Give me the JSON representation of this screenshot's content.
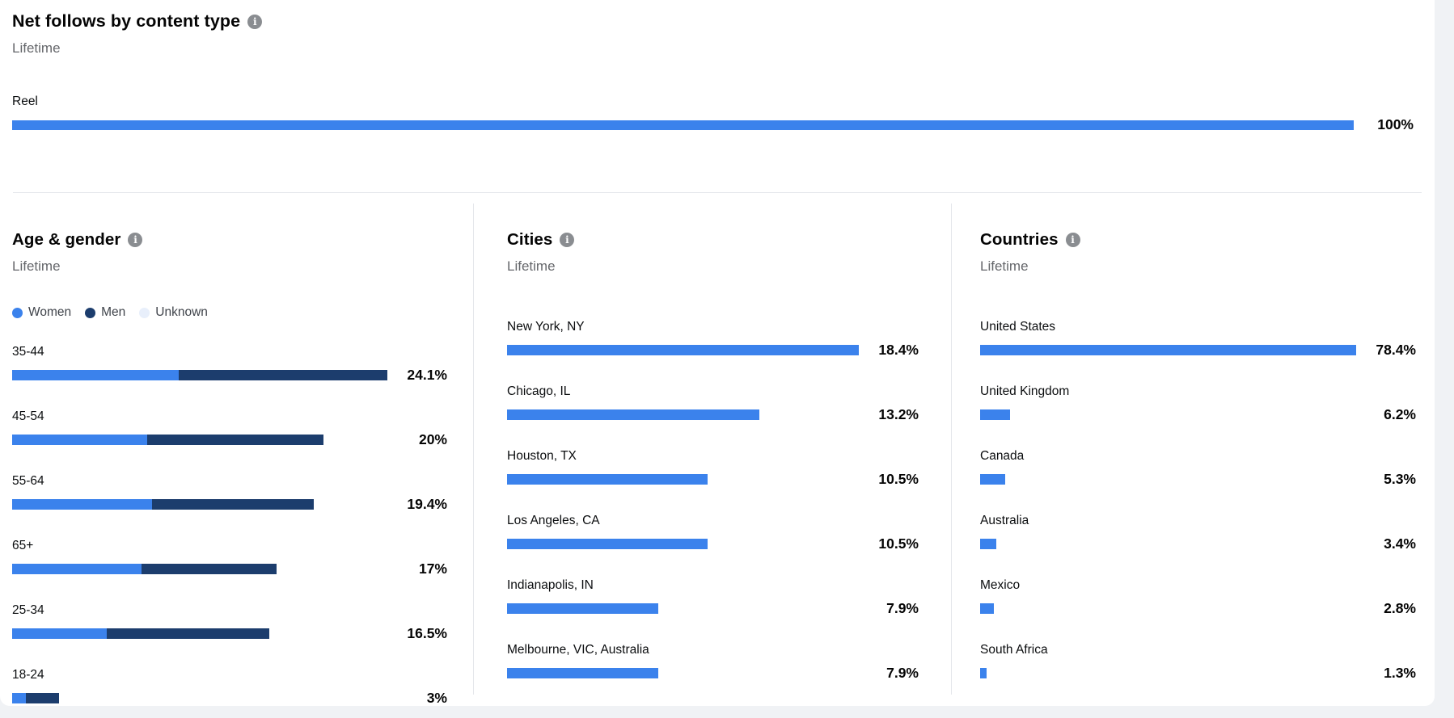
{
  "colors": {
    "bar_blue": "#3b82ec",
    "men_navy": "#1c3d6d",
    "unknown_light": "#e8effb",
    "info_gray": "#8a8d91",
    "divider": "#e4e6eb",
    "page_bg": "#f0f2f5",
    "card_bg": "#ffffff"
  },
  "net_follows": {
    "title": "Net follows by content type",
    "subtitle": "Lifetime",
    "info_icon": "i",
    "axis_max": 100,
    "rows": [
      {
        "label": "Reel",
        "display": "100%",
        "value": 100
      }
    ]
  },
  "age_gender": {
    "title": "Age & gender",
    "subtitle": "Lifetime",
    "info_icon": "i",
    "axis_max": 24.1,
    "legend": [
      {
        "label": "Women",
        "color": "#3b82ec"
      },
      {
        "label": "Men",
        "color": "#1c3d6d"
      },
      {
        "label": "Unknown",
        "color": "#e8effb"
      }
    ],
    "rows": [
      {
        "label": "35-44",
        "display": "24.1%",
        "value": 24.1,
        "women": 10.7,
        "men": 13.4
      },
      {
        "label": "45-54",
        "display": "20%",
        "value": 20,
        "women": 8.7,
        "men": 11.3
      },
      {
        "label": "55-64",
        "display": "19.4%",
        "value": 19.4,
        "women": 9.0,
        "men": 10.4
      },
      {
        "label": "65+",
        "display": "17%",
        "value": 17,
        "women": 8.3,
        "men": 8.7
      },
      {
        "label": "25-34",
        "display": "16.5%",
        "value": 16.5,
        "women": 6.1,
        "men": 10.4
      },
      {
        "label": "18-24",
        "display": "3%",
        "value": 3,
        "women": 0.9,
        "men": 2.1
      }
    ]
  },
  "cities": {
    "title": "Cities",
    "subtitle": "Lifetime",
    "info_icon": "i",
    "axis_max": 18.4,
    "rows": [
      {
        "label": "New York, NY",
        "display": "18.4%",
        "value": 18.4
      },
      {
        "label": "Chicago, IL",
        "display": "13.2%",
        "value": 13.2
      },
      {
        "label": "Houston, TX",
        "display": "10.5%",
        "value": 10.5
      },
      {
        "label": "Los Angeles, CA",
        "display": "10.5%",
        "value": 10.5
      },
      {
        "label": "Indianapolis, IN",
        "display": "7.9%",
        "value": 7.9
      },
      {
        "label": "Melbourne, VIC, Australia",
        "display": "7.9%",
        "value": 7.9
      }
    ]
  },
  "countries": {
    "title": "Countries",
    "subtitle": "Lifetime",
    "info_icon": "i",
    "axis_max": 78.4,
    "rows": [
      {
        "label": "United States",
        "display": "78.4%",
        "value": 78.4
      },
      {
        "label": "United Kingdom",
        "display": "6.2%",
        "value": 6.2
      },
      {
        "label": "Canada",
        "display": "5.3%",
        "value": 5.3
      },
      {
        "label": "Australia",
        "display": "3.4%",
        "value": 3.4
      },
      {
        "label": "Mexico",
        "display": "2.8%",
        "value": 2.8
      },
      {
        "label": "South Africa",
        "display": "1.3%",
        "value": 1.3
      }
    ]
  },
  "chart_data": [
    {
      "type": "bar",
      "orientation": "horizontal",
      "title": "Net follows by content type",
      "subtitle": "Lifetime",
      "categories": [
        "Reel"
      ],
      "values": [
        100
      ],
      "data_labels": [
        "100%"
      ],
      "unit": "%",
      "xlim": [
        0,
        100
      ],
      "grid": false,
      "legend_position": "none"
    },
    {
      "type": "bar",
      "orientation": "horizontal",
      "stacked": true,
      "title": "Age & gender",
      "subtitle": "Lifetime",
      "categories": [
        "35-44",
        "45-54",
        "55-64",
        "65+",
        "25-34",
        "18-24"
      ],
      "series": [
        {
          "name": "Women",
          "values": [
            10.7,
            8.7,
            9.0,
            8.3,
            6.1,
            0.9
          ]
        },
        {
          "name": "Men",
          "values": [
            13.4,
            11.3,
            10.4,
            8.7,
            10.4,
            2.1
          ]
        },
        {
          "name": "Unknown",
          "values": [
            0,
            0,
            0,
            0,
            0,
            0
          ]
        }
      ],
      "totals": [
        24.1,
        20,
        19.4,
        17,
        16.5,
        3
      ],
      "data_labels": [
        "24.1%",
        "20%",
        "19.4%",
        "17%",
        "16.5%",
        "3%"
      ],
      "unit": "%",
      "xlim": [
        0,
        24.1
      ],
      "grid": false,
      "legend_position": "top-left"
    },
    {
      "type": "bar",
      "orientation": "horizontal",
      "title": "Cities",
      "subtitle": "Lifetime",
      "categories": [
        "New York, NY",
        "Chicago, IL",
        "Houston, TX",
        "Los Angeles, CA",
        "Indianapolis, IN",
        "Melbourne, VIC, Australia"
      ],
      "values": [
        18.4,
        13.2,
        10.5,
        10.5,
        7.9,
        7.9
      ],
      "data_labels": [
        "18.4%",
        "13.2%",
        "10.5%",
        "10.5%",
        "7.9%",
        "7.9%"
      ],
      "unit": "%",
      "xlim": [
        0,
        18.4
      ],
      "grid": false,
      "legend_position": "none"
    },
    {
      "type": "bar",
      "orientation": "horizontal",
      "title": "Countries",
      "subtitle": "Lifetime",
      "categories": [
        "United States",
        "United Kingdom",
        "Canada",
        "Australia",
        "Mexico",
        "South Africa"
      ],
      "values": [
        78.4,
        6.2,
        5.3,
        3.4,
        2.8,
        1.3
      ],
      "data_labels": [
        "78.4%",
        "6.2%",
        "5.3%",
        "3.4%",
        "2.8%",
        "1.3%"
      ],
      "unit": "%",
      "xlim": [
        0,
        78.4
      ],
      "grid": false,
      "legend_position": "none"
    }
  ]
}
